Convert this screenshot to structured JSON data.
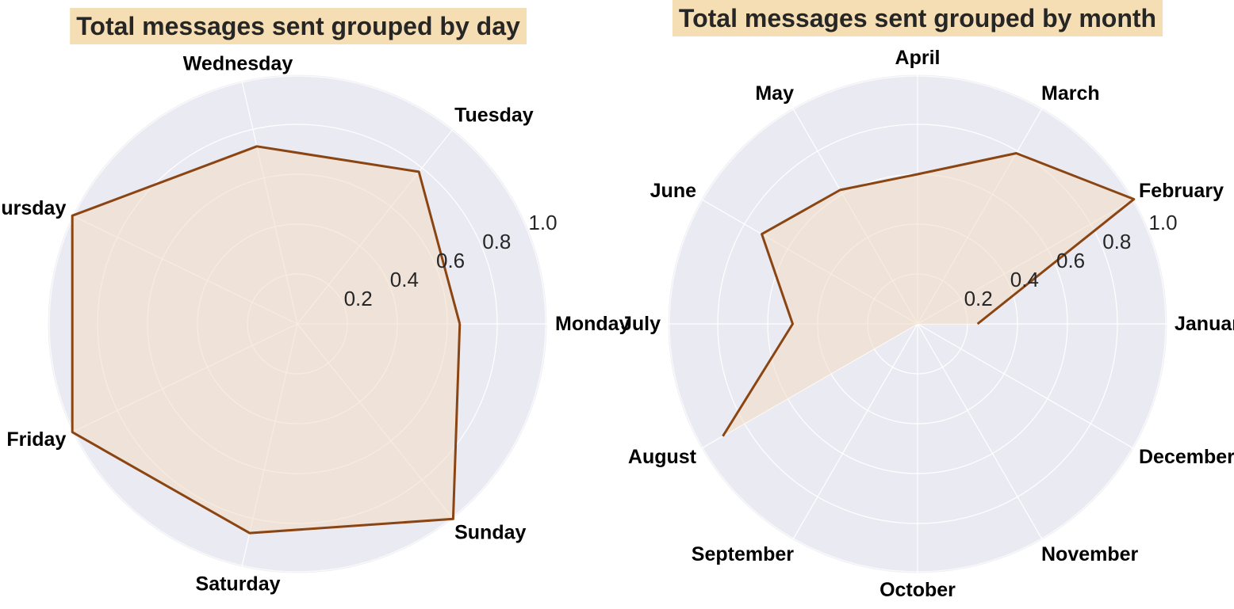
{
  "colors": {
    "plot_background": "#eaeaf2",
    "grid": "#ffffff",
    "series_line": "#8b4513",
    "series_fill": "#f3dcc4",
    "title_background": "#f5deb3",
    "title_text": "#262626",
    "label_text": "#000000"
  },
  "chart_data": [
    {
      "type": "radar",
      "title": "Total messages sent grouped by day",
      "categories": [
        "Monday",
        "Tuesday",
        "Wednesday",
        "Thursday",
        "Friday",
        "Saturday",
        "Sunday"
      ],
      "values": [
        0.65,
        0.78,
        0.73,
        1.0,
        1.0,
        0.86,
        1.0
      ],
      "radial_ticks": [
        "0.2",
        "0.4",
        "0.6",
        "0.8",
        "1.0"
      ],
      "rlim": [
        0,
        1
      ],
      "grid": true,
      "legend": "none"
    },
    {
      "type": "radar",
      "title": "Total messages sent grouped by month",
      "categories": [
        "January",
        "February",
        "March",
        "April",
        "May",
        "June",
        "July",
        "August",
        "September",
        "October",
        "November",
        "December"
      ],
      "values": [
        0.24,
        1.0,
        0.79,
        0.6,
        0.62,
        0.72,
        0.5,
        0.9,
        0.0,
        0.0,
        0.0,
        0.0
      ],
      "radial_ticks": [
        "0.2",
        "0.4",
        "0.6",
        "0.8",
        "1.0"
      ],
      "rlim": [
        0,
        1
      ],
      "grid": true,
      "legend": "none"
    }
  ]
}
